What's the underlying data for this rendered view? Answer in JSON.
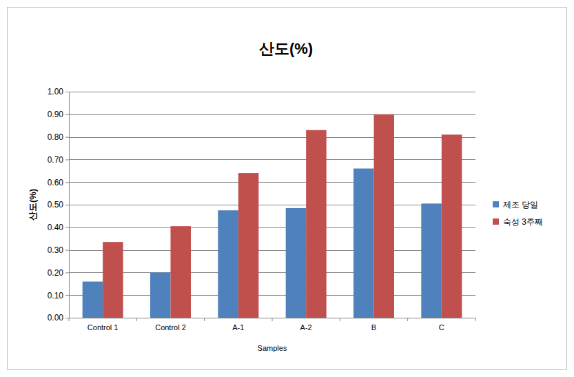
{
  "chart_data": {
    "type": "bar",
    "title": "산도(%)",
    "x_label": "Samples",
    "y_label": "산도(%)",
    "categories": [
      "Control 1",
      "Control 2",
      "A-1",
      "A-2",
      "B",
      "C"
    ],
    "series": [
      {
        "name": "제조 당일",
        "color": "#4f81bd",
        "values": [
          0.16,
          0.2,
          0.475,
          0.485,
          0.66,
          0.505
        ]
      },
      {
        "name": "숙성 3주째",
        "color": "#c0504d",
        "values": [
          0.335,
          0.405,
          0.64,
          0.83,
          0.9,
          0.81
        ]
      }
    ],
    "ylim": [
      0,
      1
    ],
    "yticks": [
      {
        "value": 0,
        "label": "0.00"
      },
      {
        "value": 0.1,
        "label": "0.10"
      },
      {
        "value": 0.2,
        "label": "0.20"
      },
      {
        "value": 0.3,
        "label": "0.30"
      },
      {
        "value": 0.4,
        "label": "0.40"
      },
      {
        "value": 0.5,
        "label": "0.50"
      },
      {
        "value": 0.6,
        "label": "0.60"
      },
      {
        "value": 0.7,
        "label": "0.70"
      },
      {
        "value": 0.8,
        "label": "0.80"
      },
      {
        "value": 0.9,
        "label": "0.90"
      },
      {
        "value": 1,
        "label": "1.00"
      }
    ],
    "grid": true,
    "legend": "right"
  }
}
